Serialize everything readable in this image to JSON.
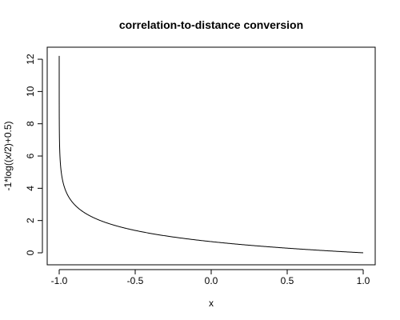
{
  "chart_data": {
    "type": "line",
    "title": "correlation-to-distance conversion",
    "xlabel": "x",
    "ylabel": "-1*log((x/2)+0.5)",
    "function": "-1*log((x/2)+0.5)",
    "xlim": [
      -1.0,
      1.0
    ],
    "ylim": [
      0,
      12.3
    ],
    "x_ticks": [
      -1.0,
      -0.5,
      0.0,
      0.5,
      1.0
    ],
    "x_tick_labels": [
      "-1.0",
      "-0.5",
      "0.0",
      "0.5",
      "1.0"
    ],
    "y_ticks": [
      0,
      2,
      4,
      6,
      8,
      10,
      12
    ],
    "y_tick_labels": [
      "0",
      "2",
      "4",
      "6",
      "8",
      "10",
      "12"
    ],
    "grid": false,
    "line_color": "#000000",
    "series": [
      {
        "x": [
          -0.99999,
          -0.9999,
          -0.999,
          -0.99,
          -0.98,
          -0.95,
          -0.9,
          -0.8,
          -0.7,
          -0.6,
          -0.5,
          -0.4,
          -0.3,
          -0.2,
          -0.1,
          0.0,
          0.1,
          0.2,
          0.3,
          0.4,
          0.5,
          0.6,
          0.7,
          0.8,
          0.9,
          1.0
        ],
        "y": [
          12.2,
          9.9,
          7.6,
          5.3,
          4.61,
          3.69,
          3.0,
          2.3,
          1.9,
          1.61,
          1.39,
          1.2,
          1.05,
          0.92,
          0.8,
          0.69,
          0.6,
          0.51,
          0.43,
          0.36,
          0.29,
          0.22,
          0.16,
          0.11,
          0.05,
          0.0
        ]
      }
    ]
  }
}
